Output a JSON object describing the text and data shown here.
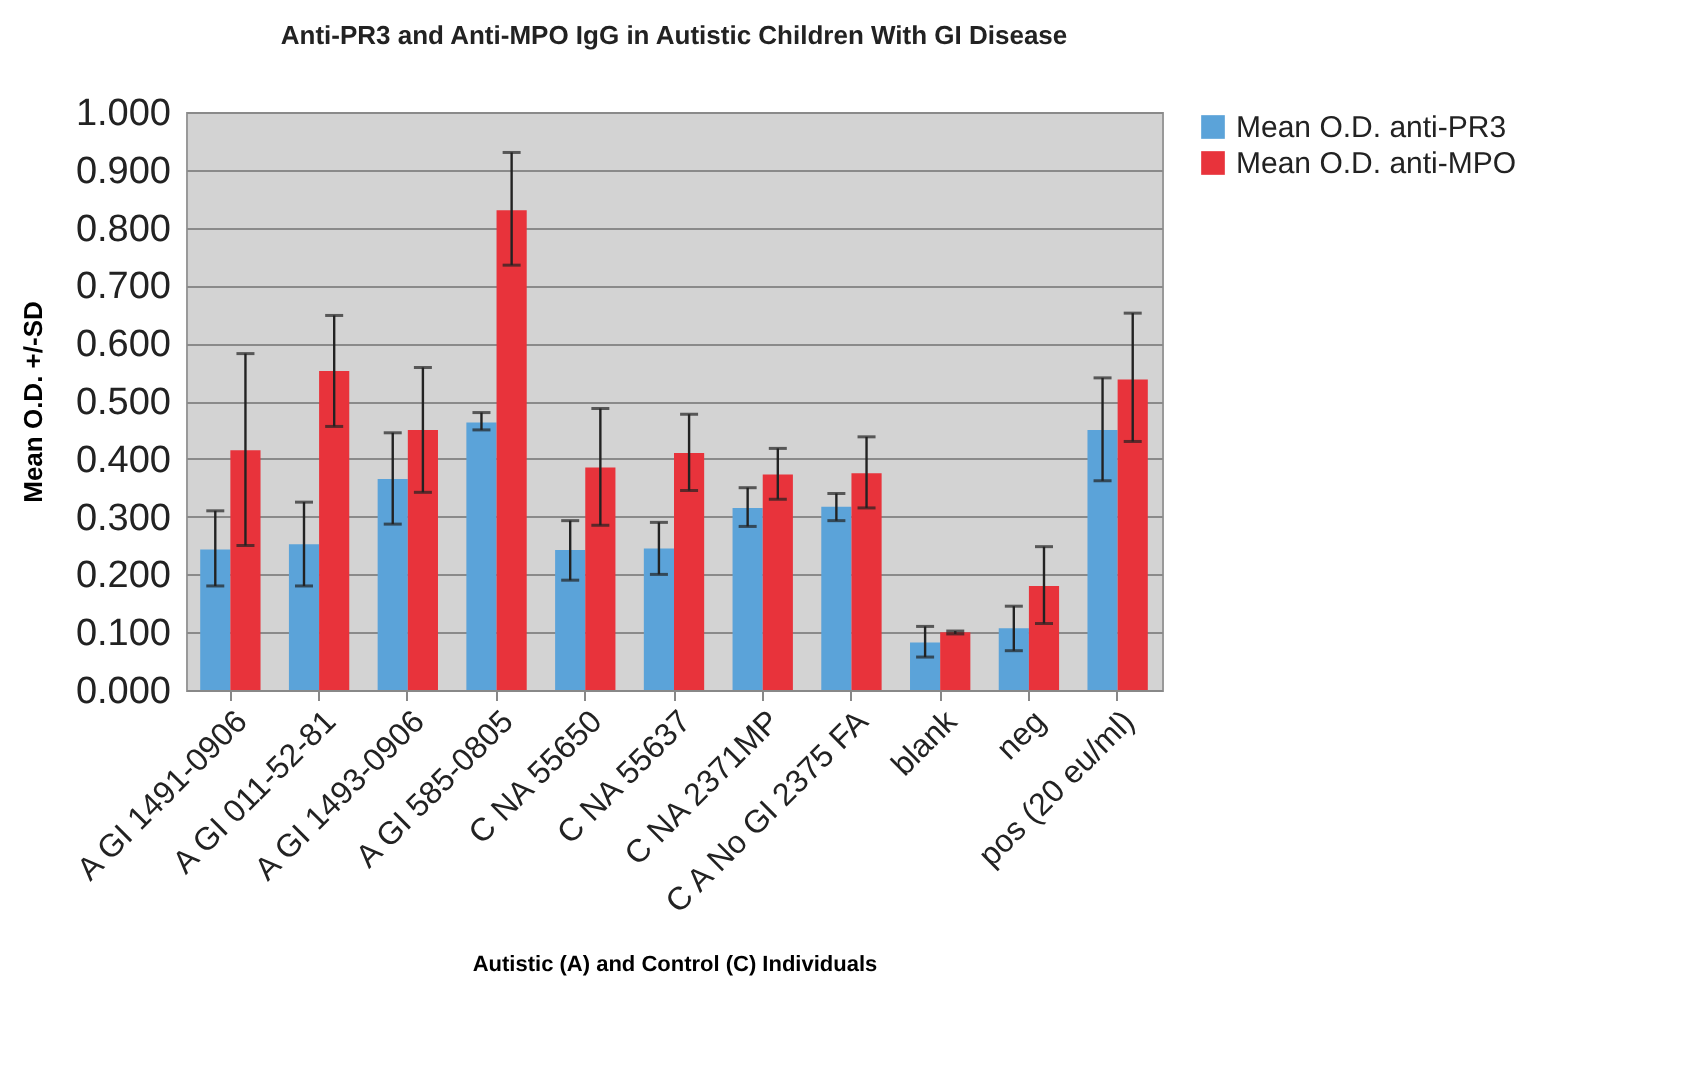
{
  "chart_data": {
    "type": "bar",
    "title": "Anti-PR3 and Anti-MPO IgG in Autistic Children With GI Disease",
    "xlabel": "Autistic (A) and Control (C) Individuals",
    "ylabel": "Mean O.D. +/-SD",
    "categories": [
      "A GI 1491-0906",
      "A GI 011-52-81",
      "A GI 1493-0906",
      "A GI 585-0805",
      "C NA 55650",
      "C NA 55637",
      "C NA 2371MP",
      "C A No GI 2375 FA",
      "blank",
      "neg",
      "pos (20 eu/ml)"
    ],
    "series": [
      {
        "name": "Mean O.D. anti-PR3",
        "color": "#5ba3d9",
        "values": [
          0.243,
          0.252,
          0.365,
          0.463,
          0.242,
          0.245,
          0.315,
          0.317,
          0.082,
          0.107,
          0.45
        ],
        "errors": [
          [
            0.18,
            0.31
          ],
          [
            0.18,
            0.325
          ],
          [
            0.287,
            0.445
          ],
          [
            0.45,
            0.48
          ],
          [
            0.19,
            0.293
          ],
          [
            0.2,
            0.29
          ],
          [
            0.283,
            0.35
          ],
          [
            0.293,
            0.34
          ],
          [
            0.057,
            0.11
          ],
          [
            0.068,
            0.145
          ],
          [
            0.362,
            0.54
          ]
        ]
      },
      {
        "name": "Mean O.D. anti-MPO",
        "color": "#e8333b",
        "values": [
          0.415,
          0.552,
          0.45,
          0.83,
          0.385,
          0.41,
          0.373,
          0.375,
          0.1,
          0.18,
          0.537
        ],
        "errors": [
          [
            0.25,
            0.582
          ],
          [
            0.456,
            0.648
          ],
          [
            0.342,
            0.558
          ],
          [
            0.735,
            0.93
          ],
          [
            0.285,
            0.487
          ],
          [
            0.345,
            0.477
          ],
          [
            0.33,
            0.418
          ],
          [
            0.315,
            0.438
          ],
          [
            0.097,
            0.102
          ],
          [
            0.115,
            0.248
          ],
          [
            0.43,
            0.652
          ]
        ]
      }
    ],
    "ylim": [
      0,
      1
    ],
    "yticks": [
      {
        "value": 0,
        "label": "0.000"
      },
      {
        "value": 0.1,
        "label": "0.100"
      },
      {
        "value": 0.2,
        "label": "0.200"
      },
      {
        "value": 0.3,
        "label": "0.300"
      },
      {
        "value": 0.4,
        "label": "0.400"
      },
      {
        "value": 0.5,
        "label": "0.500"
      },
      {
        "value": 0.6,
        "label": "0.600"
      },
      {
        "value": 0.7,
        "label": "0.700"
      },
      {
        "value": 0.8,
        "label": "0.800"
      },
      {
        "value": 0.9,
        "label": "0.900"
      },
      {
        "value": 1,
        "label": "1.000"
      }
    ],
    "grid": true,
    "legend": "right"
  }
}
